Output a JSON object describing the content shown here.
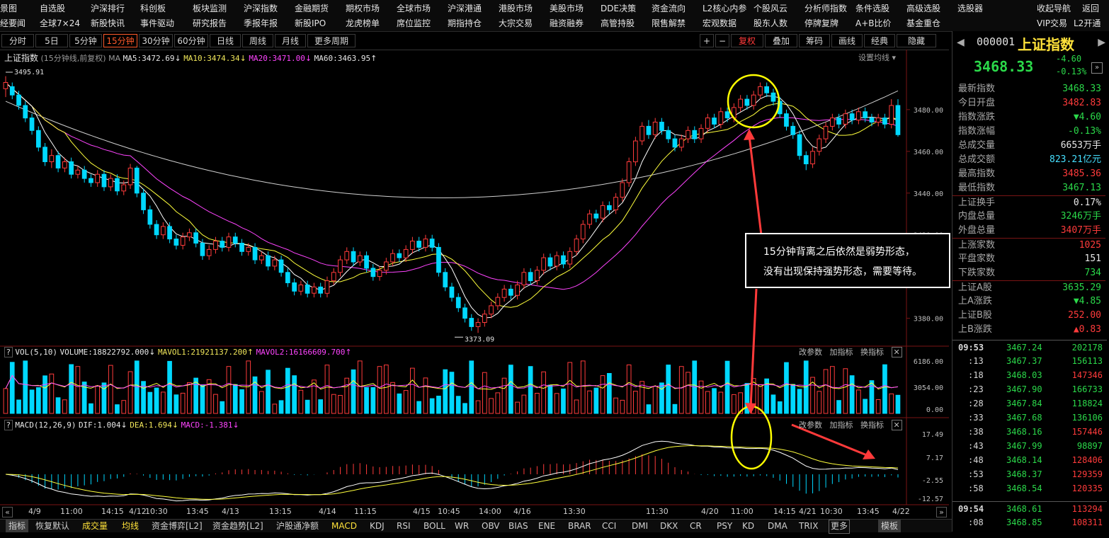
{
  "menu": {
    "row1": [
      "景图",
      "自选股",
      "沪深排行",
      "科创板",
      "板块监测",
      "沪深指数",
      "金融期货",
      "期权市场",
      "全球市场",
      "沪深港通",
      "港股市场",
      "美股市场",
      "DDE决策",
      "资金流向",
      "L2核心内参",
      "个股风云",
      "分析师指数",
      "条件选股",
      "高级选股",
      "选股器",
      "收起导航",
      "返回"
    ],
    "row2": [
      "经要闻",
      "全球7×24",
      "新股快讯",
      "事件驱动",
      "研究报告",
      "季报年报",
      "新股IPO",
      "龙虎榜单",
      "席位监控",
      "期指持仓",
      "大宗交易",
      "融资融券",
      "高管持股",
      "限售解禁",
      "宏观数据",
      "股东人数",
      "停牌复牌",
      "A+B比价",
      "基金重仓",
      "VIP交易",
      "L2开通"
    ]
  },
  "periods": [
    "分时",
    "5日",
    "5分钟",
    "15分钟",
    "30分钟",
    "60分钟",
    "日线",
    "周线",
    "月线",
    "更多周期"
  ],
  "active_period": "15分钟",
  "tools": {
    "plus": "+",
    "minus": "−",
    "fq": "复权",
    "overlay": "叠加",
    "chips": "筹码",
    "draw": "画线",
    "classic": "经典",
    "hide": "隐藏"
  },
  "main_chart": {
    "title": "上证指数",
    "subtitle": "(15分钟线,前复权)",
    "ma_label": "MA",
    "ma5": "MA5:3472.69",
    "ma10": "MA10:3474.34",
    "ma20": "MA20:3471.00",
    "ma60": "MA60:3463.95",
    "settings": "设置均线",
    "high_label": "3495.91",
    "low_label": "3373.09",
    "y_ticks": [
      "3480.00",
      "3460.00",
      "3440.00",
      "3420.00",
      "3400.00",
      "3380.00"
    ],
    "y_values": [
      3480,
      3460,
      3440,
      3420,
      3400,
      3380
    ],
    "ylim": [
      3368,
      3502
    ]
  },
  "volume": {
    "header": "VOL(5,10)",
    "volume": "VOLUME:18822792.000",
    "mavol1": "MAVOL1:21921137.200",
    "mavol2": "MAVOL2:16166609.700",
    "y_ticks": [
      "6186.00",
      "3054.00",
      "0.00"
    ],
    "actions": [
      "改参数",
      "加指标",
      "换指标"
    ]
  },
  "macd": {
    "header": "MACD(12,26,9)",
    "dif": "DIF:1.004",
    "dea": "DEA:1.694",
    "macd": "MACD:-1.381",
    "y_ticks": [
      "17.49",
      "7.17",
      "-2.55",
      "-12.57"
    ],
    "actions": [
      "改参数",
      "加指标",
      "换指标"
    ]
  },
  "x_labels": [
    "4/9",
    "11:00",
    "14:15",
    "4/12",
    "10:30",
    "13:45",
    "4/13",
    "13:15",
    "4/14",
    "11:15",
    "4/15",
    "10:45",
    "14:00",
    "4/16",
    "13:30",
    "11:30",
    "4/20",
    "11:00",
    "14:15",
    "4/21",
    "10:30",
    "13:45",
    "4/22"
  ],
  "annotation": {
    "line1": "15分钟背离之后依然是弱势形态，",
    "line2": "没有出现保持强势形态，需要等待。"
  },
  "quote": {
    "code": "000001",
    "name": "上证指数",
    "price": "3468.33",
    "change": "-4.60",
    "pct": "-0.13%",
    "rows": [
      {
        "label": "最新指数",
        "value": "3468.33",
        "color": "green"
      },
      {
        "label": "今日开盘",
        "value": "3482.83",
        "color": "red"
      },
      {
        "label": "指数涨跌",
        "value": "▼4.60",
        "color": "green"
      },
      {
        "label": "指数涨幅",
        "value": "-0.13%",
        "color": "green"
      },
      {
        "label": "总成交量",
        "value": "6653万手",
        "color": "white"
      },
      {
        "label": "总成交额",
        "value": "823.21亿元",
        "color": "cyan"
      },
      {
        "label": "最高指数",
        "value": "3485.36",
        "color": "red"
      },
      {
        "label": "最低指数",
        "value": "3467.13",
        "color": "green"
      },
      {
        "label": "上证换手",
        "value": "0.17%",
        "color": "white"
      },
      {
        "label": "内盘总量",
        "value": "3246万手",
        "color": "green"
      },
      {
        "label": "外盘总量",
        "value": "3407万手",
        "color": "red"
      },
      {
        "label": "上涨家数",
        "value": "1025",
        "color": "red"
      },
      {
        "label": "平盘家数",
        "value": "151",
        "color": "white"
      },
      {
        "label": "下跌家数",
        "value": "734",
        "color": "green"
      },
      {
        "label": "上证A股",
        "value": "3635.29",
        "color": "green"
      },
      {
        "label": "上A涨跌",
        "value": "▼4.85",
        "color": "green"
      },
      {
        "label": "上证B股",
        "value": "252.00",
        "color": "red"
      },
      {
        "label": "上B涨跌",
        "value": "▲0.83",
        "color": "red"
      }
    ],
    "ticks": [
      {
        "time": "09:53",
        "price": "3467.24",
        "vol": "202178",
        "tc": "green"
      },
      {
        "time": ":13",
        "price": "3467.37",
        "vol": "156113",
        "tc": "green"
      },
      {
        "time": ":18",
        "price": "3468.03",
        "vol": "147346",
        "tc": "red"
      },
      {
        "time": ":23",
        "price": "3467.90",
        "vol": "166733",
        "tc": "green"
      },
      {
        "time": ":28",
        "price": "3467.84",
        "vol": "118824",
        "tc": "green"
      },
      {
        "time": ":33",
        "price": "3467.68",
        "vol": "136106",
        "tc": "green"
      },
      {
        "time": ":38",
        "price": "3468.16",
        "vol": "157446",
        "tc": "red"
      },
      {
        "time": ":43",
        "price": "3467.99",
        "vol": "98897",
        "tc": "green"
      },
      {
        "time": ":48",
        "price": "3468.14",
        "vol": "128406",
        "tc": "red"
      },
      {
        "time": ":53",
        "price": "3468.37",
        "vol": "129359",
        "tc": "red"
      },
      {
        "time": ":58",
        "price": "3468.54",
        "vol": "120335",
        "tc": "red"
      },
      {
        "time": "09:54",
        "price": "3468.61",
        "vol": "113294",
        "tc": "red"
      },
      {
        "time": ":08",
        "price": "3468.85",
        "vol": "108311",
        "tc": "red"
      }
    ]
  },
  "bottom_tabs": [
    "指标",
    "恢复默认",
    "成交量",
    "均线",
    "资金博弈[L2]",
    "资金趋势[L2]",
    "沪股通净额",
    "MACD",
    "KDJ",
    "RSI",
    "BOLL",
    "WR",
    "OBV",
    "BIAS",
    "ENE",
    "BRAR",
    "CCI",
    "DMI",
    "DKX",
    "CR",
    "PSY",
    "KD",
    "DMA",
    "TRIX",
    "更多",
    "模板"
  ],
  "colors": {
    "up": "#ff3b3b",
    "down": "#00d8ff",
    "ma5": "#ffffff",
    "ma10": "#ffff3c",
    "ma20": "#ff44ff",
    "ma60": "#cfcfcf",
    "annot": "#ff3a3a",
    "circle": "#ffff00"
  },
  "chart_data": {
    "type": "candlestick",
    "title": "上证指数",
    "candles": [
      [
        3490,
        3493,
        3496,
        3486
      ],
      [
        3491,
        3487,
        3493,
        3485
      ],
      [
        3487,
        3482,
        3489,
        3480
      ],
      [
        3482,
        3476,
        3484,
        3474
      ],
      [
        3476,
        3470,
        3478,
        3468
      ],
      [
        3470,
        3462,
        3472,
        3460
      ],
      [
        3462,
        3455,
        3464,
        3453
      ],
      [
        3455,
        3458,
        3461,
        3452
      ],
      [
        3458,
        3452,
        3460,
        3450
      ],
      [
        3452,
        3455,
        3457,
        3450
      ],
      [
        3455,
        3449,
        3457,
        3447
      ],
      [
        3449,
        3451,
        3453,
        3447
      ],
      [
        3451,
        3447,
        3453,
        3445
      ],
      [
        3447,
        3445,
        3449,
        3443
      ],
      [
        3445,
        3449,
        3451,
        3443
      ],
      [
        3449,
        3443,
        3451,
        3441
      ],
      [
        3443,
        3447,
        3449,
        3441
      ],
      [
        3447,
        3441,
        3449,
        3439
      ],
      [
        3441,
        3444,
        3446,
        3439
      ],
      [
        3444,
        3452,
        3454,
        3442
      ],
      [
        3452,
        3440,
        3453,
        3438
      ],
      [
        3440,
        3432,
        3442,
        3430
      ],
      [
        3432,
        3425,
        3434,
        3423
      ],
      [
        3425,
        3420,
        3427,
        3418
      ],
      [
        3420,
        3424,
        3426,
        3418
      ],
      [
        3424,
        3418,
        3426,
        3416
      ],
      [
        3418,
        3415,
        3420,
        3413
      ],
      [
        3415,
        3419,
        3421,
        3413
      ],
      [
        3419,
        3421,
        3423,
        3417
      ],
      [
        3421,
        3416,
        3423,
        3414
      ],
      [
        3416,
        3410,
        3418,
        3408
      ],
      [
        3410,
        3413,
        3415,
        3408
      ],
      [
        3413,
        3417,
        3419,
        3411
      ],
      [
        3417,
        3414,
        3419,
        3412
      ],
      [
        3414,
        3419,
        3421,
        3412
      ],
      [
        3419,
        3416,
        3421,
        3414
      ],
      [
        3416,
        3412,
        3418,
        3410
      ],
      [
        3412,
        3414,
        3416,
        3410
      ],
      [
        3414,
        3408,
        3416,
        3406
      ],
      [
        3408,
        3410,
        3412,
        3406
      ],
      [
        3410,
        3405,
        3412,
        3403
      ],
      [
        3405,
        3408,
        3410,
        3403
      ],
      [
        3408,
        3402,
        3410,
        3400
      ],
      [
        3402,
        3397,
        3404,
        3395
      ],
      [
        3397,
        3393,
        3399,
        3391
      ],
      [
        3393,
        3396,
        3398,
        3391
      ],
      [
        3396,
        3392,
        3398,
        3390
      ],
      [
        3392,
        3395,
        3397,
        3390
      ],
      [
        3395,
        3392,
        3397,
        3390
      ],
      [
        3392,
        3398,
        3400,
        3390
      ],
      [
        3398,
        3402,
        3404,
        3396
      ],
      [
        3402,
        3408,
        3410,
        3400
      ],
      [
        3408,
        3412,
        3414,
        3406
      ],
      [
        3412,
        3407,
        3414,
        3405
      ],
      [
        3407,
        3410,
        3412,
        3405
      ],
      [
        3410,
        3404,
        3412,
        3402
      ],
      [
        3404,
        3400,
        3406,
        3398
      ],
      [
        3400,
        3403,
        3405,
        3398
      ],
      [
        3403,
        3407,
        3409,
        3401
      ],
      [
        3407,
        3411,
        3413,
        3405
      ],
      [
        3411,
        3409,
        3413,
        3407
      ],
      [
        3409,
        3413,
        3415,
        3407
      ],
      [
        3413,
        3417,
        3419,
        3411
      ],
      [
        3417,
        3414,
        3419,
        3412
      ],
      [
        3414,
        3418,
        3420,
        3412
      ],
      [
        3418,
        3414,
        3420,
        3412
      ],
      [
        3414,
        3402,
        3416,
        3400
      ],
      [
        3402,
        3395,
        3404,
        3393
      ],
      [
        3395,
        3390,
        3397,
        3388
      ],
      [
        3390,
        3385,
        3392,
        3383
      ],
      [
        3385,
        3380,
        3387,
        3378
      ],
      [
        3380,
        3376,
        3382,
        3374
      ],
      [
        3376,
        3378,
        3380,
        3373
      ],
      [
        3378,
        3382,
        3384,
        3376
      ],
      [
        3382,
        3386,
        3388,
        3380
      ],
      [
        3386,
        3390,
        3392,
        3384
      ],
      [
        3390,
        3394,
        3396,
        3388
      ],
      [
        3394,
        3391,
        3396,
        3389
      ],
      [
        3391,
        3396,
        3398,
        3389
      ],
      [
        3396,
        3402,
        3404,
        3394
      ],
      [
        3402,
        3398,
        3404,
        3396
      ],
      [
        3398,
        3403,
        3405,
        3396
      ],
      [
        3403,
        3409,
        3411,
        3401
      ],
      [
        3409,
        3405,
        3411,
        3403
      ],
      [
        3405,
        3410,
        3412,
        3403
      ],
      [
        3410,
        3406,
        3412,
        3404
      ],
      [
        3406,
        3412,
        3414,
        3404
      ],
      [
        3412,
        3418,
        3420,
        3410
      ],
      [
        3418,
        3425,
        3427,
        3416
      ],
      [
        3425,
        3430,
        3432,
        3423
      ],
      [
        3430,
        3428,
        3432,
        3426
      ],
      [
        3428,
        3434,
        3436,
        3426
      ],
      [
        3434,
        3432,
        3436,
        3430
      ],
      [
        3432,
        3438,
        3440,
        3430
      ],
      [
        3438,
        3445,
        3447,
        3436
      ],
      [
        3445,
        3455,
        3457,
        3443
      ],
      [
        3455,
        3465,
        3467,
        3453
      ],
      [
        3465,
        3472,
        3474,
        3463
      ],
      [
        3472,
        3468,
        3475,
        3466
      ],
      [
        3468,
        3474,
        3476,
        3466
      ],
      [
        3474,
        3470,
        3476,
        3468
      ],
      [
        3470,
        3466,
        3472,
        3464
      ],
      [
        3466,
        3462,
        3468,
        3460
      ],
      [
        3462,
        3466,
        3468,
        3460
      ],
      [
        3466,
        3470,
        3472,
        3464
      ],
      [
        3470,
        3466,
        3472,
        3464
      ],
      [
        3466,
        3471,
        3473,
        3464
      ],
      [
        3471,
        3476,
        3478,
        3469
      ],
      [
        3476,
        3473,
        3478,
        3471
      ],
      [
        3473,
        3479,
        3481,
        3471
      ],
      [
        3479,
        3476,
        3481,
        3474
      ],
      [
        3476,
        3481,
        3483,
        3474
      ],
      [
        3481,
        3485,
        3487,
        3479
      ],
      [
        3485,
        3482,
        3487,
        3480
      ],
      [
        3482,
        3487,
        3489,
        3480
      ],
      [
        3487,
        3491,
        3493,
        3485
      ],
      [
        3491,
        3488,
        3493,
        3486
      ],
      [
        3488,
        3484,
        3490,
        3482
      ],
      [
        3484,
        3478,
        3486,
        3476
      ],
      [
        3478,
        3472,
        3480,
        3470
      ],
      [
        3472,
        3468,
        3474,
        3466
      ],
      [
        3468,
        3458,
        3470,
        3456
      ],
      [
        3458,
        3454,
        3460,
        3451
      ],
      [
        3454,
        3460,
        3462,
        3452
      ],
      [
        3460,
        3466,
        3468,
        3458
      ],
      [
        3466,
        3472,
        3474,
        3464
      ],
      [
        3472,
        3476,
        3478,
        3470
      ],
      [
        3476,
        3473,
        3478,
        3471
      ],
      [
        3473,
        3478,
        3480,
        3471
      ],
      [
        3478,
        3475,
        3480,
        3473
      ],
      [
        3475,
        3479,
        3481,
        3473
      ],
      [
        3479,
        3476,
        3481,
        3474
      ],
      [
        3476,
        3474,
        3478,
        3472
      ],
      [
        3474,
        3476,
        3478,
        3472
      ],
      [
        3476,
        3473,
        3478,
        3471
      ],
      [
        3473,
        3482,
        3485,
        3471
      ],
      [
        3482,
        3468,
        3485,
        3467
      ]
    ],
    "ma_series": [
      "MA5",
      "MA10",
      "MA20",
      "MA60"
    ]
  }
}
